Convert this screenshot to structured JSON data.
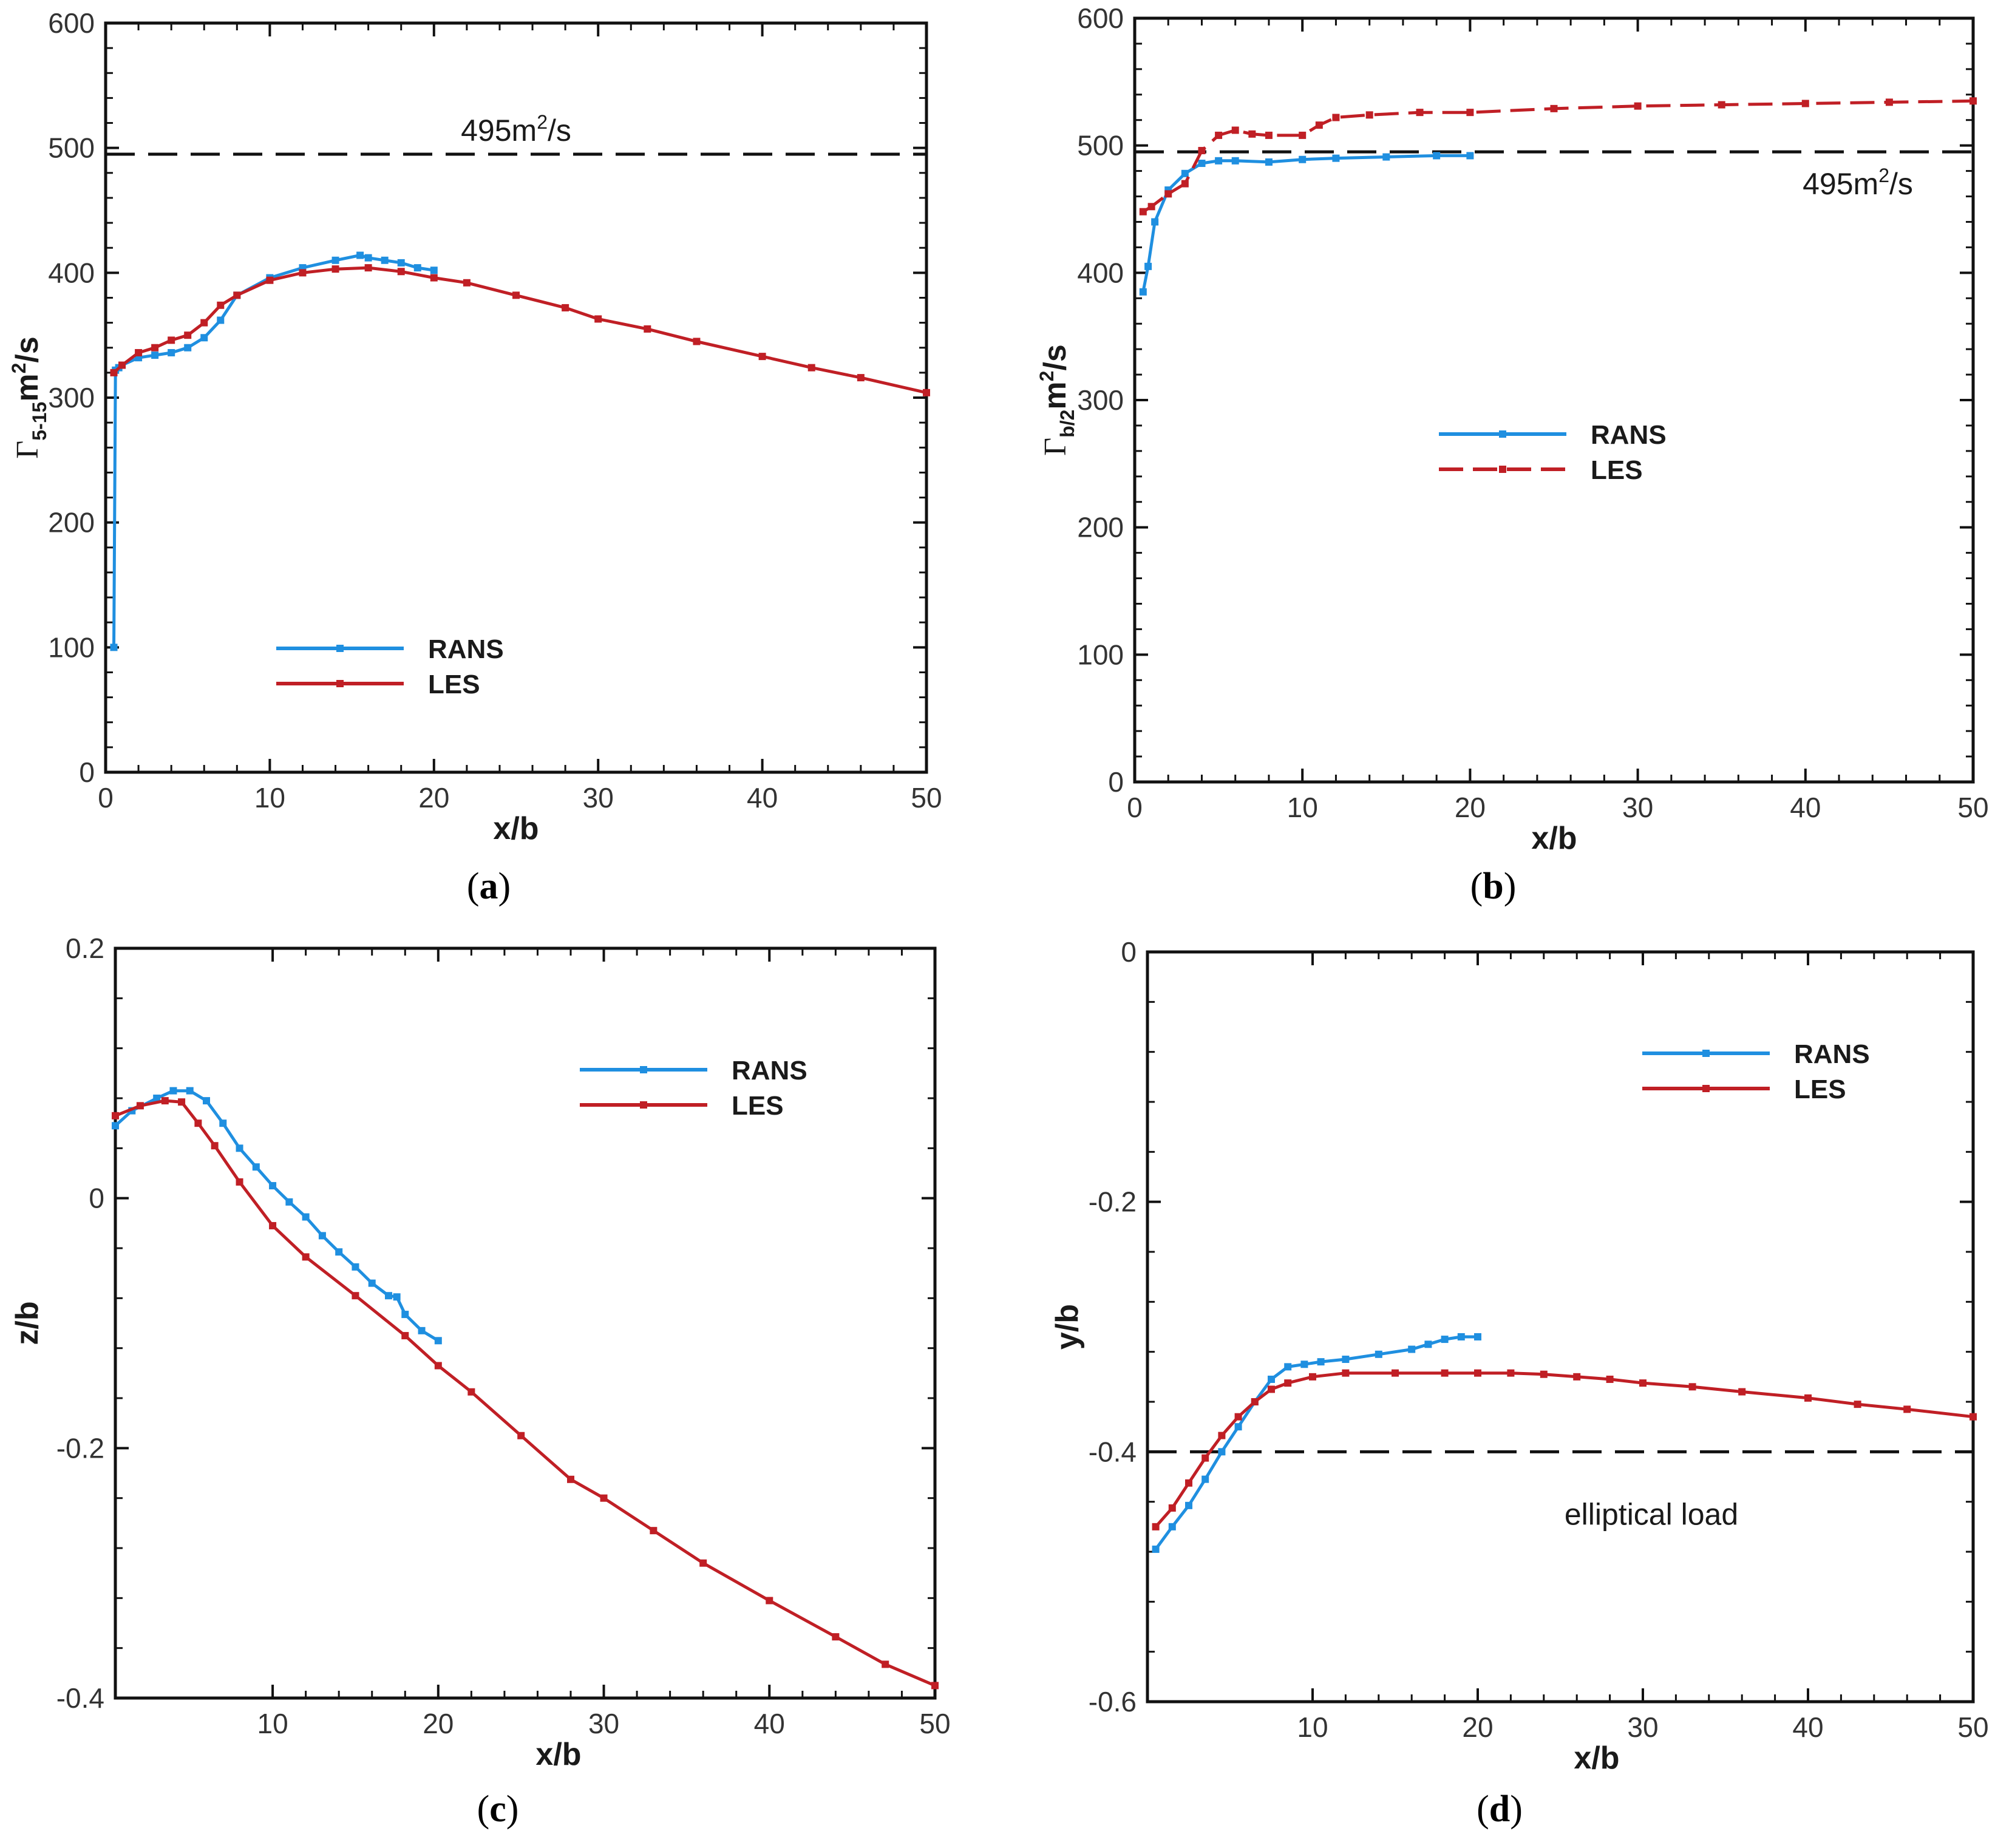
{
  "chart_data": [
    {
      "panel": "(a)",
      "panel_letter": "a",
      "type": "line",
      "title": "",
      "xlabel": "x/b",
      "ylabel": "Γ5-15m2/s",
      "ylabel_parts": {
        "symbol": "Γ",
        "subscript": "5-15",
        "unit": "m",
        "exp": "2",
        "tail": "/s"
      },
      "xlim": [
        0,
        50
      ],
      "ylim": [
        0,
        600
      ],
      "xticks": [
        0,
        10,
        20,
        30,
        40,
        50
      ],
      "yticks": [
        0,
        100,
        200,
        300,
        400,
        500,
        600
      ],
      "legend": {
        "entries": [
          "RANS",
          "LES"
        ],
        "placement": "lower-left"
      },
      "reference_line": {
        "y": 495,
        "label_main": "495m",
        "label_exp": "2",
        "label_tail": "/s",
        "style": "dashed"
      },
      "series": [
        {
          "name": "RANS",
          "color": "#1f8fe0",
          "dashed": false,
          "x": [
            0.5,
            0.6,
            0.8,
            1.0,
            2.0,
            3.0,
            4.0,
            5.0,
            6.0,
            7.0,
            8.0,
            10.0,
            12.0,
            14.0,
            15.5,
            16.0,
            17.0,
            18.0,
            19.0,
            20.0
          ],
          "y": [
            100,
            322,
            324,
            326,
            332,
            334,
            336,
            340,
            348,
            362,
            382,
            396,
            404,
            410,
            414,
            412,
            410,
            408,
            404,
            402
          ]
        },
        {
          "name": "LES",
          "color": "#c01f25",
          "dashed": false,
          "x": [
            0.5,
            1.0,
            2.0,
            3.0,
            4.0,
            5.0,
            6.0,
            7.0,
            8.0,
            10.0,
            12.0,
            14.0,
            16.0,
            18.0,
            20.0,
            22.0,
            25.0,
            28.0,
            30.0,
            33.0,
            36.0,
            40.0,
            43.0,
            46.0,
            50.0
          ],
          "y": [
            320,
            326,
            336,
            340,
            346,
            350,
            360,
            374,
            382,
            394,
            400,
            403,
            404,
            401,
            396,
            392,
            382,
            372,
            363,
            355,
            345,
            333,
            324,
            316,
            304
          ]
        }
      ]
    },
    {
      "panel": "(b)",
      "panel_letter": "b",
      "type": "line",
      "title": "",
      "xlabel": "x/b",
      "ylabel": "Γb/2m2/s",
      "ylabel_parts": {
        "symbol": "Γ",
        "subscript": "b/2",
        "unit": "m",
        "exp": "2",
        "tail": "/s"
      },
      "xlim": [
        0,
        50
      ],
      "ylim": [
        0,
        600
      ],
      "xticks": [
        0,
        10,
        20,
        30,
        40,
        50
      ],
      "yticks": [
        0,
        100,
        200,
        300,
        400,
        500,
        600
      ],
      "legend": {
        "entries": [
          "RANS",
          "LES"
        ],
        "placement": "center"
      },
      "reference_line": {
        "y": 495,
        "label_main": "495m",
        "label_exp": "2",
        "label_tail": "/s",
        "style": "dashed"
      },
      "series": [
        {
          "name": "RANS",
          "color": "#1f8fe0",
          "dashed": false,
          "x": [
            0.5,
            0.8,
            1.2,
            2.0,
            3.0,
            4.0,
            5.0,
            6.0,
            8.0,
            10.0,
            12.0,
            15.0,
            18.0,
            20.0
          ],
          "y": [
            385,
            405,
            440,
            465,
            478,
            486,
            488,
            488,
            487,
            489,
            490,
            491,
            492,
            492
          ]
        },
        {
          "name": "LES",
          "color": "#c01f25",
          "dashed": true,
          "x": [
            0.5,
            1.0,
            2.0,
            3.0,
            4.0,
            5.0,
            6.0,
            7.0,
            8.0,
            10.0,
            11.0,
            12.0,
            14.0,
            17.0,
            20.0,
            25.0,
            30.0,
            35.0,
            40.0,
            45.0,
            50.0
          ],
          "y": [
            448,
            452,
            462,
            470,
            496,
            508,
            512,
            509,
            508,
            508,
            516,
            522,
            524,
            526,
            526,
            529,
            531,
            532,
            533,
            534,
            535
          ]
        }
      ]
    },
    {
      "panel": "(c)",
      "panel_letter": "c",
      "type": "line",
      "title": "",
      "xlabel": "x/b",
      "ylabel": "z/b",
      "xlim": [
        0.5,
        50
      ],
      "ylim": [
        -0.4,
        0.2
      ],
      "xticks": [
        10,
        20,
        30,
        40,
        50
      ],
      "yticks": [
        -0.4,
        -0.2,
        0,
        0.2
      ],
      "legend": {
        "entries": [
          "RANS",
          "LES"
        ],
        "placement": "top-right"
      },
      "series": [
        {
          "name": "RANS",
          "color": "#1f8fe0",
          "dashed": false,
          "x": [
            0.5,
            1.5,
            3.0,
            4.0,
            5.0,
            6.0,
            7.0,
            8.0,
            9.0,
            10.0,
            11.0,
            12.0,
            13.0,
            14.0,
            15.0,
            16.0,
            17.0,
            17.5,
            18.0,
            19.0,
            20.0
          ],
          "y": [
            0.058,
            0.07,
            0.08,
            0.086,
            0.086,
            0.078,
            0.06,
            0.04,
            0.025,
            0.01,
            -0.003,
            -0.015,
            -0.03,
            -0.043,
            -0.055,
            -0.068,
            -0.078,
            -0.079,
            -0.093,
            -0.106,
            -0.114
          ]
        },
        {
          "name": "LES",
          "color": "#c01f25",
          "dashed": false,
          "x": [
            0.5,
            2.0,
            3.5,
            4.5,
            5.5,
            6.5,
            8.0,
            10.0,
            12.0,
            15.0,
            18.0,
            20.0,
            22.0,
            25.0,
            28.0,
            30.0,
            33.0,
            36.0,
            40.0,
            44.0,
            47.0,
            50.0
          ],
          "y": [
            0.066,
            0.074,
            0.078,
            0.077,
            0.06,
            0.042,
            0.013,
            -0.022,
            -0.047,
            -0.078,
            -0.11,
            -0.134,
            -0.155,
            -0.19,
            -0.225,
            -0.24,
            -0.266,
            -0.292,
            -0.322,
            -0.351,
            -0.373,
            -0.39
          ]
        }
      ]
    },
    {
      "panel": "(d)",
      "panel_letter": "d",
      "type": "line",
      "title": "",
      "xlabel": "x/b",
      "ylabel": "y/b",
      "xlim": [
        0,
        50
      ],
      "ylim": [
        -0.6,
        0
      ],
      "xticks": [
        10,
        20,
        30,
        40,
        50
      ],
      "yticks": [
        -0.6,
        -0.4,
        -0.2,
        0
      ],
      "legend": {
        "entries": [
          "RANS",
          "LES"
        ],
        "placement": "top-right"
      },
      "reference_line": {
        "y": -0.4,
        "label_main": "elliptical load",
        "label_exp": "",
        "label_tail": "",
        "style": "dashed"
      },
      "series": [
        {
          "name": "RANS",
          "color": "#1f8fe0",
          "dashed": false,
          "x": [
            0.5,
            1.5,
            2.5,
            3.5,
            4.5,
            5.5,
            6.5,
            7.5,
            8.5,
            9.5,
            10.5,
            12.0,
            14.0,
            16.0,
            17.0,
            18.0,
            19.0,
            20.0
          ],
          "y": [
            -0.478,
            -0.46,
            -0.443,
            -0.422,
            -0.4,
            -0.38,
            -0.36,
            -0.342,
            -0.332,
            -0.33,
            -0.328,
            -0.326,
            -0.322,
            -0.318,
            -0.314,
            -0.31,
            -0.308,
            -0.308
          ]
        },
        {
          "name": "LES",
          "color": "#c01f25",
          "dashed": false,
          "x": [
            0.5,
            1.5,
            2.5,
            3.5,
            4.5,
            5.5,
            6.5,
            7.5,
            8.5,
            10.0,
            12.0,
            15.0,
            18.0,
            20.0,
            22.0,
            24.0,
            26.0,
            28.0,
            30.0,
            33.0,
            36.0,
            40.0,
            43.0,
            46.0,
            50.0
          ],
          "y": [
            -0.46,
            -0.445,
            -0.425,
            -0.405,
            -0.387,
            -0.372,
            -0.36,
            -0.35,
            -0.345,
            -0.34,
            -0.337,
            -0.337,
            -0.337,
            -0.337,
            -0.337,
            -0.338,
            -0.34,
            -0.342,
            -0.345,
            -0.348,
            -0.352,
            -0.357,
            -0.362,
            -0.366,
            -0.372
          ]
        }
      ]
    }
  ]
}
